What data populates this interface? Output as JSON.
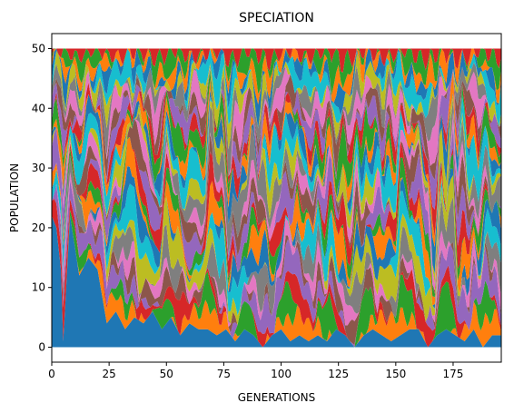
{
  "chart_data": {
    "type": "area",
    "stacked": true,
    "title": "SPECIATION",
    "xlabel": "GENERATIONS",
    "ylabel": "POPULATION",
    "xlim": [
      0,
      196
    ],
    "ylim": [
      -2.5,
      52.5
    ],
    "xticks": [
      0,
      25,
      50,
      75,
      100,
      125,
      150,
      175
    ],
    "yticks": [
      0,
      10,
      20,
      30,
      40,
      50
    ],
    "total_population": 50,
    "grid": false,
    "legend": "none",
    "species_count": 34,
    "series_colors": [
      "#1f77b4",
      "#ff7f0e",
      "#2ca02c",
      "#d62728",
      "#9467bd",
      "#8c564b",
      "#e377c2",
      "#7f7f7f",
      "#bcbd22",
      "#17becf"
    ],
    "bottom_species_samples": {
      "x": [
        0,
        2,
        4,
        5,
        8,
        12,
        16,
        20,
        24,
        28,
        32,
        36,
        40,
        44,
        48,
        52,
        56,
        60,
        64,
        68,
        72,
        76,
        80,
        84,
        88,
        92,
        96,
        100,
        104,
        108,
        112,
        116,
        120,
        124,
        128,
        132,
        136,
        140,
        144,
        148,
        152,
        156,
        160,
        164,
        168,
        172,
        176,
        180,
        184,
        188,
        192,
        195
      ],
      "values": [
        22,
        20,
        13,
        1,
        22,
        12,
        15,
        13,
        4,
        6,
        3,
        5,
        4,
        6,
        3,
        5,
        2,
        4,
        3,
        3,
        2,
        3,
        1,
        3,
        2,
        0,
        2,
        3,
        1,
        2,
        1,
        2,
        1,
        3,
        2,
        0,
        2,
        3,
        2,
        1,
        2,
        3,
        3,
        0,
        2,
        3,
        2,
        1,
        3,
        0,
        2,
        2
      ]
    }
  }
}
